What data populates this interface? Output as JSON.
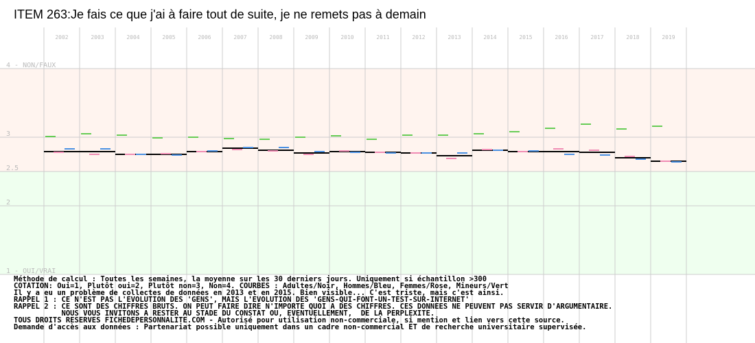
{
  "title": "ITEM 263:Je fais ce que j'ai à faire tout de suite, je ne remets pas à demain",
  "colors": {
    "background_top": "#fff4ef",
    "background_bottom": "#efffef",
    "grid": "#cccccc",
    "label": "#bbbbbb",
    "adults": "#000000",
    "men": "#4a90e2",
    "women": "#f08cb4",
    "minors": "#66cc55"
  },
  "chart_data": {
    "type": "line",
    "title": "ITEM 263:Je fais ce que j'ai à faire tout de suite, je ne remets pas à demain",
    "xlabel": "",
    "ylabel": "",
    "ylim": [
      1,
      4
    ],
    "grid": true,
    "categories": [
      "2002",
      "2003",
      "2004",
      "2005",
      "2006",
      "2007",
      "2008",
      "2009",
      "2010",
      "2011",
      "2012",
      "2013",
      "2014",
      "2015",
      "2016",
      "2017",
      "2018",
      "2019"
    ],
    "y_ticks": [
      {
        "value": 4,
        "label": "4 - NON/FAUX"
      },
      {
        "value": 3,
        "label": "3"
      },
      {
        "value": 2.5,
        "label": "2.5"
      },
      {
        "value": 2,
        "label": "2"
      },
      {
        "value": 1,
        "label": "1 - OUI/VRAI"
      }
    ],
    "series": [
      {
        "name": "Adultes",
        "color": "#000000",
        "values": [
          2.79,
          2.79,
          2.75,
          2.75,
          2.79,
          2.84,
          2.81,
          2.77,
          2.79,
          2.78,
          2.77,
          2.73,
          2.81,
          2.79,
          2.79,
          2.78,
          2.7,
          2.65
        ]
      },
      {
        "name": "Hommes",
        "color": "#4a90e2",
        "values": [
          2.83,
          2.83,
          2.75,
          2.74,
          2.8,
          2.85,
          2.85,
          2.79,
          2.78,
          2.77,
          2.77,
          2.77,
          2.81,
          2.8,
          2.75,
          2.74,
          2.68,
          2.64
        ]
      },
      {
        "name": "Femmes",
        "color": "#f08cb4",
        "values": [
          2.78,
          2.75,
          2.75,
          2.76,
          2.79,
          2.82,
          2.8,
          2.75,
          2.8,
          2.78,
          2.77,
          2.69,
          2.82,
          2.79,
          2.83,
          2.81,
          2.72,
          2.65
        ]
      },
      {
        "name": "Mineurs",
        "color": "#66cc55",
        "values": [
          3.01,
          3.05,
          3.03,
          2.99,
          3.0,
          2.98,
          2.97,
          3.0,
          3.02,
          2.97,
          3.03,
          3.03,
          3.05,
          3.08,
          3.13,
          3.19,
          3.12,
          3.16
        ]
      }
    ]
  },
  "notes": [
    "Méthode de calcul : Toutes les semaines, la moyenne sur les 30 derniers jours. Uniquement si échantillon >300",
    "COTATION: Oui=1, Plutôt oui=2, Plutôt non=3, Non=4. COURBES : Adultes/Noir, Hommes/Bleu, Femmes/Rose, Mineurs/Vert",
    "Il y a eu un problème de collectes de données en 2013 et en 2015. Bien visible... C'est triste, mais c'est ainsi.",
    "RAPPEL 1 : CE N'EST PAS L'EVOLUTION DES 'GENS', MAIS L'EVOLUTION DES 'GENS-QUI-FONT-UN-TEST-SUR-INTERNET'",
    "RAPPEL 2 : CE SONT DES CHIFFRES BRUTS. ON PEUT FAIRE DIRE N'IMPORTE QUOI A DES CHIFFRES. CES DONNEES NE PEUVENT PAS SERVIR D'ARGUMENTAIRE.",
    "           NOUS VOUS INVITONS A RESTER AU STADE DU CONSTAT OU, EVENTUELLEMENT,  DE LA PERPLEXITE.",
    "TOUS DROITS RESERVES FICHEDEPERSONNALITE.COM - Autorisé pour utilisation non-commerciale, si mention et lien vers cette source.",
    "Demande d'accès aux données : Partenariat possible uniquement dans un cadre non-commercial ET de recherche universitaire supervisée."
  ]
}
